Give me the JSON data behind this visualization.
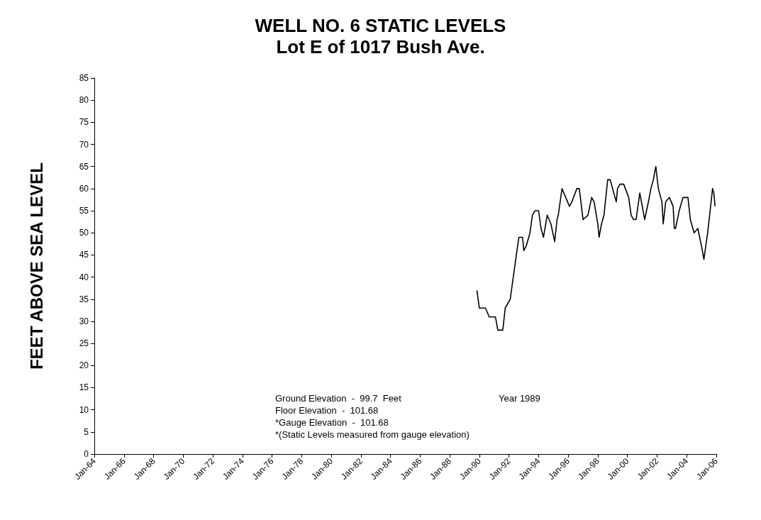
{
  "chart_data": {
    "type": "line",
    "title": "WELL NO. 6 STATIC LEVELS",
    "subtitle": "Lot E of 1017 Bush Ave.",
    "ylabel": "FEET ABOVE SEA LEVEL",
    "annotations": [
      "Ground Elevation  -  99.7  Feet",
      "Floor Elevation  -  101.68",
      "*Gauge Elevation  -  101.68",
      "*(Static Levels measured from gauge elevation)",
      "Year 1989"
    ],
    "xlim": [
      "1964-01",
      "2006-01"
    ],
    "xticks": [
      {
        "value": "1964-01",
        "label": "Jan-64"
      },
      {
        "value": "1966-01",
        "label": "Jan-66"
      },
      {
        "value": "1968-01",
        "label": "Jan-68"
      },
      {
        "value": "1970-01",
        "label": "Jan-70"
      },
      {
        "value": "1972-01",
        "label": "Jan-72"
      },
      {
        "value": "1974-01",
        "label": "Jan-74"
      },
      {
        "value": "1976-01",
        "label": "Jan-76"
      },
      {
        "value": "1978-01",
        "label": "Jan-78"
      },
      {
        "value": "1980-01",
        "label": "Jan-80"
      },
      {
        "value": "1982-01",
        "label": "Jan-82"
      },
      {
        "value": "1984-01",
        "label": "Jan-84"
      },
      {
        "value": "1986-01",
        "label": "Jan-86"
      },
      {
        "value": "1988-01",
        "label": "Jan-88"
      },
      {
        "value": "1990-01",
        "label": "Jan-90"
      },
      {
        "value": "1992-01",
        "label": "Jan-92"
      },
      {
        "value": "1994-01",
        "label": "Jan-94"
      },
      {
        "value": "1996-01",
        "label": "Jan-96"
      },
      {
        "value": "1998-01",
        "label": "Jan-98"
      },
      {
        "value": "2000-01",
        "label": "Jan-00"
      },
      {
        "value": "2002-01",
        "label": "Jan-02"
      },
      {
        "value": "2004-01",
        "label": "Jan-04"
      },
      {
        "value": "2006-01",
        "label": "Jan-06"
      }
    ],
    "ylim": [
      0,
      85
    ],
    "yticks": [
      0,
      5,
      10,
      15,
      20,
      25,
      30,
      35,
      40,
      45,
      50,
      55,
      60,
      65,
      70,
      75,
      80,
      85
    ],
    "grid": false,
    "marker": "none",
    "line_style": "solid",
    "x": [
      "1989-11",
      "1990-01",
      "1990-06",
      "1990-09",
      "1991-02",
      "1991-04",
      "1991-08",
      "1991-10",
      "1992-02",
      "1992-04",
      "1992-07",
      "1992-09",
      "1992-12",
      "1993-01",
      "1993-03",
      "1993-06",
      "1993-08",
      "1993-10",
      "1994-01",
      "1994-03",
      "1994-05",
      "1994-08",
      "1994-11",
      "1995-02",
      "1995-04",
      "1995-05",
      "1995-08",
      "1995-11",
      "1996-02",
      "1996-04",
      "1996-08",
      "1996-10",
      "1997-01",
      "1997-05",
      "1997-08",
      "1997-10",
      "1998-01",
      "1998-02",
      "1998-04",
      "1998-06",
      "1998-09",
      "1998-11",
      "1999-03",
      "1999-04",
      "1999-05",
      "1999-07",
      "1999-10",
      "2000-02",
      "2000-04",
      "2000-06",
      "2000-08",
      "2000-10",
      "2000-11",
      "2001-01",
      "2001-03",
      "2001-06",
      "2001-08",
      "2001-10",
      "2001-12",
      "2002-02",
      "2002-05",
      "2002-06",
      "2002-08",
      "2002-11",
      "2003-02",
      "2003-03",
      "2003-04",
      "2003-07",
      "2003-10",
      "2004-02",
      "2004-04",
      "2004-07",
      "2004-10",
      "2005-01",
      "2005-03",
      "2005-06",
      "2005-08",
      "2005-10",
      "2005-11",
      "2005-12"
    ],
    "series": [
      {
        "color": "#000000",
        "values": [
          37,
          33,
          33,
          31,
          31,
          28,
          28,
          33,
          35,
          39,
          45,
          49,
          49,
          46,
          47,
          50,
          54,
          55,
          55,
          51,
          49,
          54,
          52,
          48,
          53,
          54,
          60,
          58,
          56,
          57,
          60,
          60,
          53,
          54,
          58,
          57,
          52,
          49,
          52,
          54,
          62,
          62,
          58,
          57,
          60,
          61,
          61,
          58,
          54,
          53,
          53,
          57,
          59,
          56,
          53,
          57,
          60,
          62,
          65,
          60,
          57,
          52,
          57,
          58,
          56,
          51,
          51,
          55,
          58,
          58,
          53,
          50,
          51,
          47,
          44,
          50,
          55,
          60,
          59,
          56
        ]
      }
    ]
  }
}
